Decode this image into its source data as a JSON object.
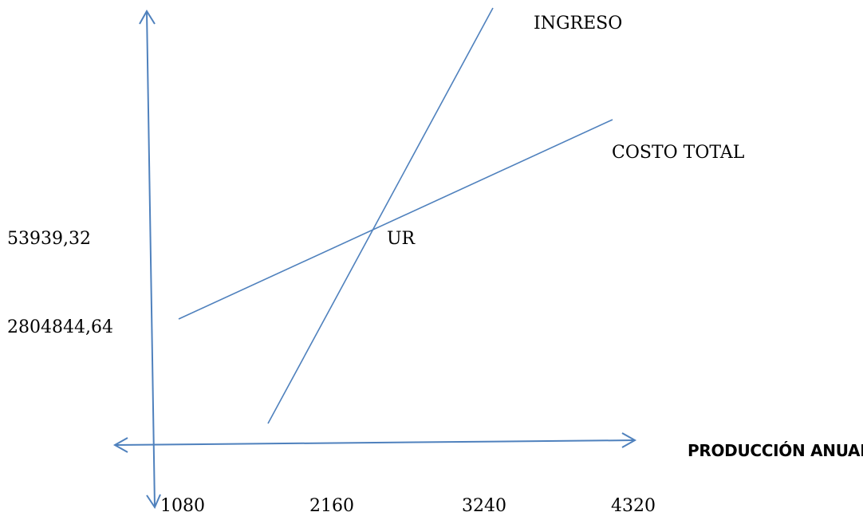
{
  "diagram": {
    "line_color": "#4F81BD",
    "curves": {
      "ingreso": "INGRESO",
      "costo_total": "COSTO TOTAL"
    },
    "point_label": "UR",
    "y_labels": [
      "53939,32",
      "2804844,64"
    ],
    "x_axis_title": "PRODUCCIÓN ANUAL",
    "x_ticks": [
      "1080",
      "2160",
      "3240",
      "4320"
    ]
  }
}
